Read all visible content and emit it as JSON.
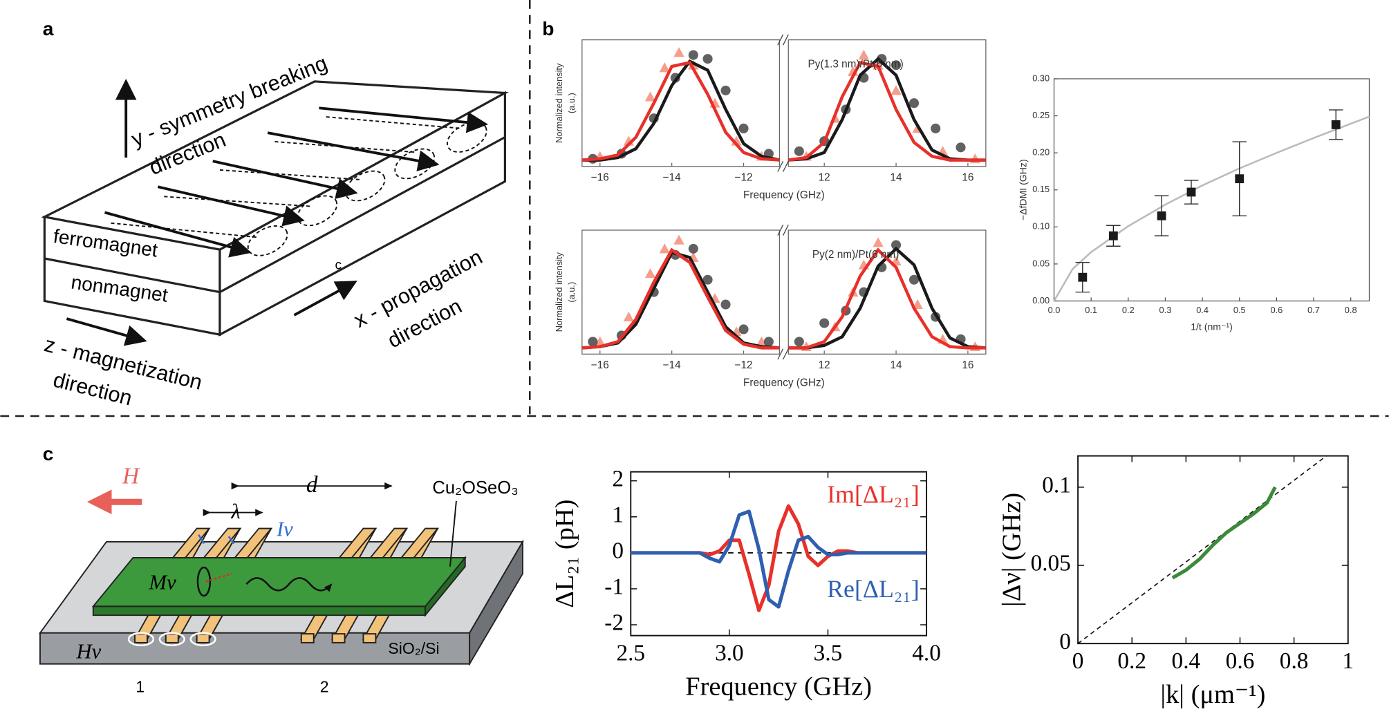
{
  "panel_a": {
    "label": "a",
    "y_label": [
      "y - symmetry breaking",
      "direction"
    ],
    "layers": [
      "ferromagnet",
      "nonmagnet"
    ],
    "x_label": [
      "x - propagation",
      "direction"
    ],
    "z_label": [
      "z - magnetization",
      "direction"
    ],
    "corner": "c"
  },
  "panel_b": {
    "label": "b"
  },
  "panel_c": {
    "label": "c",
    "field": "H",
    "distance": "d",
    "wavelength": "λ",
    "current": "Iν",
    "film": "Cu₂OSeO₃",
    "magnetization": "Mν",
    "antenna_field": "Hν",
    "substrate": "SiO₂/Si",
    "antennas": [
      "1",
      "2"
    ]
  },
  "chart_data": [
    {
      "type": "spectrum",
      "annotation": "Py(1.3 nm)/Pt(6 nm)",
      "xlabel": "Frequency (GHz)",
      "ylabel": [
        "Normalized intensity",
        "(a.u.)"
      ],
      "xlim": [
        [
          -16.5,
          -11
        ],
        [
          11,
          16.5
        ]
      ],
      "ylim": [
        0,
        1
      ],
      "xticks": [
        [
          {
            "value": -16,
            "label": "−16"
          },
          {
            "value": -14,
            "label": "−14"
          },
          {
            "value": -12,
            "label": "−12"
          }
        ],
        [
          12,
          14,
          16
        ]
      ],
      "series": [
        {
          "style": "triangle",
          "color": "#f4866e",
          "x": [
            -16,
            -15.2,
            -14.6,
            -14.2,
            -13.8,
            -13.4,
            -12.8,
            -12.2,
            -11.5,
            11.5,
            12.3,
            12.8,
            13.1,
            13.5,
            14,
            14.6,
            15.3,
            16.2
          ],
          "values": [
            0.08,
            0.2,
            0.55,
            0.78,
            0.9,
            0.8,
            0.5,
            0.2,
            0.08,
            0.08,
            0.38,
            0.75,
            0.88,
            0.8,
            0.6,
            0.3,
            0.12,
            0.06
          ]
        },
        {
          "style": "circle",
          "color": "#3a3a3a",
          "x": [
            -16.2,
            -15.4,
            -14.5,
            -13.9,
            -13.4,
            -13,
            -12.5,
            -12,
            -11.3,
            11.3,
            12,
            12.6,
            13.1,
            13.6,
            14,
            14.5,
            15.1,
            15.8
          ],
          "values": [
            0.06,
            0.1,
            0.38,
            0.7,
            0.88,
            0.85,
            0.6,
            0.3,
            0.1,
            0.12,
            0.2,
            0.45,
            0.7,
            0.85,
            0.8,
            0.5,
            0.3,
            0.15
          ]
        },
        {
          "style": "line",
          "color": "#1a1a1a",
          "x": [
            -16.5,
            -16,
            -15.5,
            -15,
            -14.5,
            -14,
            -13.5,
            -13,
            -12.5,
            -12,
            -11.5,
            -11,
            null,
            11,
            11.5,
            12,
            12.5,
            13,
            13.5,
            14,
            14.5,
            15,
            15.5,
            16,
            16.5
          ],
          "values": [
            0.05,
            0.05,
            0.07,
            0.14,
            0.34,
            0.64,
            0.83,
            0.76,
            0.45,
            0.18,
            0.08,
            0.05,
            null,
            0.05,
            0.06,
            0.11,
            0.37,
            0.72,
            0.85,
            0.72,
            0.37,
            0.13,
            0.06,
            0.05,
            0.05
          ]
        },
        {
          "style": "line",
          "color": "#e8302a",
          "x": [
            -16.5,
            -16,
            -15.5,
            -15,
            -14.5,
            -14,
            -13.5,
            -13,
            -12.5,
            -12,
            -11.5,
            -11,
            null,
            11,
            11.5,
            12,
            12.5,
            13,
            13.5,
            14,
            14.5,
            15,
            15.5,
            16,
            16.5
          ],
          "values": [
            0.05,
            0.06,
            0.09,
            0.23,
            0.5,
            0.79,
            0.82,
            0.57,
            0.27,
            0.11,
            0.06,
            0.05,
            null,
            0.05,
            0.07,
            0.19,
            0.55,
            0.82,
            0.79,
            0.45,
            0.19,
            0.08,
            0.05,
            0.05,
            0.05
          ]
        }
      ]
    },
    {
      "type": "spectrum",
      "annotation": "Py(2 nm)/Pt(6 nm)",
      "xlabel": "Frequency (GHz)",
      "ylabel": [
        "Normalized intensity",
        "(a.u.)"
      ],
      "xlim": [
        [
          -16.5,
          -11
        ],
        [
          11,
          16.5
        ]
      ],
      "ylim": [
        0,
        1
      ],
      "xticks": [
        [
          {
            "value": -16,
            "label": "−16"
          },
          {
            "value": -14,
            "label": "−14"
          },
          {
            "value": -12,
            "label": "−12"
          }
        ],
        [
          12,
          14,
          16
        ]
      ],
      "series": [
        {
          "style": "triangle",
          "color": "#f4866e",
          "x": [
            -16,
            -15.2,
            -14.6,
            -14.2,
            -13.8,
            -13.4,
            -12.8,
            -12.2,
            -11.5,
            11.5,
            12.3,
            12.8,
            13.1,
            13.5,
            14,
            14.6,
            15.3,
            16.2
          ],
          "values": [
            0.1,
            0.3,
            0.65,
            0.85,
            0.92,
            0.78,
            0.45,
            0.18,
            0.1,
            0.06,
            0.22,
            0.5,
            0.72,
            0.9,
            0.75,
            0.4,
            0.12,
            0.06
          ]
        },
        {
          "style": "circle",
          "color": "#3a3a3a",
          "x": [
            -16.2,
            -15.4,
            -14.5,
            -13.9,
            -13.4,
            -13,
            -12.5,
            -12,
            -11.3,
            11.3,
            12,
            12.6,
            13.1,
            13.6,
            14,
            14.5,
            15.1,
            15.8
          ],
          "values": [
            0.1,
            0.15,
            0.5,
            0.8,
            0.85,
            0.6,
            0.4,
            0.2,
            0.1,
            0.1,
            0.25,
            0.35,
            0.5,
            0.7,
            0.88,
            0.6,
            0.3,
            0.12
          ]
        },
        {
          "style": "line",
          "color": "#1a1a1a",
          "x": [
            -16.5,
            -16,
            -15.5,
            -15,
            -14.5,
            -14,
            -13.5,
            -13,
            -12.5,
            -12,
            -11.5,
            -11,
            null,
            11,
            11.5,
            12,
            12.5,
            13,
            13.5,
            14,
            14.5,
            15,
            15.5,
            16,
            16.5
          ],
          "values": [
            0.05,
            0.06,
            0.09,
            0.24,
            0.53,
            0.82,
            0.78,
            0.5,
            0.22,
            0.09,
            0.06,
            0.05,
            null,
            0.05,
            0.05,
            0.07,
            0.14,
            0.37,
            0.71,
            0.85,
            0.72,
            0.37,
            0.13,
            0.06,
            0.05
          ]
        },
        {
          "style": "line",
          "color": "#e8302a",
          "x": [
            -16.5,
            -16,
            -15.5,
            -15,
            -14.5,
            -14,
            -13.5,
            -13,
            -12.5,
            -12,
            -11.5,
            -11,
            null,
            11,
            11.5,
            12,
            12.5,
            13,
            13.5,
            14,
            14.5,
            15,
            15.5,
            16,
            16.5
          ],
          "values": [
            0.05,
            0.06,
            0.1,
            0.28,
            0.58,
            0.84,
            0.74,
            0.46,
            0.19,
            0.08,
            0.05,
            0.05,
            null,
            0.05,
            0.05,
            0.1,
            0.3,
            0.63,
            0.84,
            0.7,
            0.37,
            0.14,
            0.06,
            0.05,
            0.05
          ]
        }
      ]
    },
    {
      "type": "errorbar",
      "xlabel": "1/t (nm⁻¹)",
      "ylabel": "−ΔfDMI (GHz)",
      "xlim": [
        0,
        0.85
      ],
      "ylim": [
        0,
        0.3
      ],
      "xticks": [
        {
          "value": 0,
          "label": "0.0"
        },
        0.1,
        0.2,
        0.3,
        0.4,
        0.5,
        0.6,
        0.7,
        0.8
      ],
      "yticks": [
        {
          "value": 0,
          "label": "0.00"
        },
        0.05,
        {
          "value": 0.1,
          "label": "0.10"
        },
        0.15,
        {
          "value": 0.2,
          "label": "0.20"
        },
        0.25,
        {
          "value": 0.3,
          "label": "0.30"
        }
      ],
      "color": "#1a1a1a",
      "x": [
        0.077,
        0.16,
        0.29,
        0.37,
        0.5,
        0.76
      ],
      "values": [
        0.032,
        0.088,
        0.115,
        0.147,
        0.165,
        0.238
      ],
      "errors": [
        0.02,
        0.014,
        0.027,
        0.016,
        0.05,
        0.02
      ],
      "fit": {
        "color": "#bbbbbb",
        "x": [
          0,
          0.05,
          0.1,
          0.2,
          0.3,
          0.4,
          0.5,
          0.6,
          0.7,
          0.85
        ],
        "values": [
          0,
          0.043,
          0.066,
          0.101,
          0.13,
          0.156,
          0.179,
          0.2,
          0.22,
          0.249
        ]
      }
    },
    {
      "type": "line",
      "xlabel": "Frequency (GHz)",
      "ylabel": "ΔL₂₁ (pH)",
      "xlim": [
        2.5,
        4.0
      ],
      "ylim": [
        -2.3,
        2.25
      ],
      "xticks": [
        2.5,
        {
          "value": 3,
          "label": "3.0"
        },
        3.5,
        {
          "value": 4,
          "label": "4.0"
        }
      ],
      "yticks": [
        -2,
        -1,
        0,
        1,
        2
      ],
      "reference_line": 0,
      "x": [
        2.5,
        2.55,
        2.6,
        2.65,
        2.7,
        2.75,
        2.8,
        2.85,
        2.9,
        2.95,
        3.0,
        3.05,
        3.1,
        3.15,
        3.2,
        3.25,
        3.3,
        3.35,
        3.4,
        3.45,
        3.5,
        3.55,
        3.6,
        3.65,
        3.7,
        3.75,
        3.8,
        3.85,
        3.9,
        3.95,
        4.0
      ],
      "series": [
        {
          "name": "Im[ΔL₂₁]",
          "color": "#e8302a",
          "values": [
            0,
            0,
            0,
            0,
            0,
            0,
            0,
            0,
            -0.05,
            0.05,
            0.35,
            0.35,
            -0.6,
            -1.6,
            -0.9,
            0.6,
            1.3,
            0.8,
            -0.1,
            -0.35,
            -0.1,
            0.05,
            0.05,
            0,
            0,
            0,
            0,
            0,
            0,
            0,
            0
          ]
        },
        {
          "name": "Re[ΔL₂₁]",
          "color": "#2f5fb0",
          "values": [
            0,
            0,
            0,
            0,
            0,
            0,
            0,
            0,
            -0.15,
            -0.25,
            0.2,
            1.05,
            1.15,
            0.1,
            -1.3,
            -1.5,
            -0.5,
            0.35,
            0.45,
            0.15,
            -0.05,
            -0.05,
            0,
            0,
            0,
            0,
            0,
            0,
            0,
            0,
            0
          ]
        }
      ]
    },
    {
      "type": "line",
      "xlabel": "|k| (μm⁻¹)",
      "ylabel": "|Δν| (GHz)",
      "xlim": [
        0,
        1
      ],
      "ylim": [
        0,
        0.12
      ],
      "xticks": [
        0,
        0.2,
        0.4,
        0.6,
        0.8,
        1
      ],
      "yticks": [
        0,
        0.05,
        0.1
      ],
      "guide": {
        "x": [
          0,
          0.92
        ],
        "values": [
          0,
          0.12
        ]
      },
      "x": [
        0.35,
        0.4,
        0.45,
        0.5,
        0.55,
        0.6,
        0.65,
        0.7,
        0.73
      ],
      "series": [
        {
          "color": "#3a8a3a",
          "values": [
            0.042,
            0.047,
            0.054,
            0.063,
            0.071,
            0.077,
            0.083,
            0.09,
            0.1
          ]
        }
      ]
    }
  ]
}
